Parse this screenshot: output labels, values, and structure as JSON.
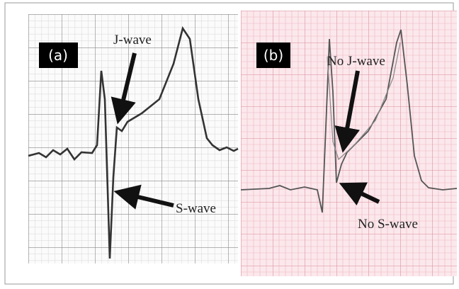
{
  "panels": [
    {
      "label": "(a)",
      "annotations": [
        "J-wave",
        "S-wave"
      ]
    },
    {
      "label": "(b)",
      "annotations": [
        "No J-wave",
        "No S-wave"
      ]
    }
  ]
}
